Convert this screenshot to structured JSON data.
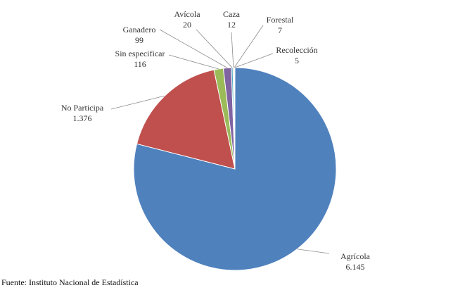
{
  "chart_data": {
    "type": "pie",
    "title": "",
    "slices": [
      {
        "label": "Agrícola",
        "value": 6145,
        "display": "6.145",
        "color": "#4f81bd"
      },
      {
        "label": "No Participa",
        "value": 1376,
        "display": "1.376",
        "color": "#c0504d"
      },
      {
        "label": "Sin especificar",
        "value": 116,
        "display": "116",
        "color": "#9bbb59"
      },
      {
        "label": "Ganadero",
        "value": 99,
        "display": "99",
        "color": "#8064a2"
      },
      {
        "label": "Avícola",
        "value": 20,
        "display": "20",
        "color": "#4bacc6"
      },
      {
        "label": "Caza",
        "value": 12,
        "display": "12",
        "color": "#f79646"
      },
      {
        "label": "Forestal",
        "value": 7,
        "display": "7",
        "color": "#2c4d75"
      },
      {
        "label": "Recolección",
        "value": 5,
        "display": "5",
        "color": "#772c2a"
      }
    ]
  },
  "source": "Fuente: Instituto Nacional de Estadística"
}
